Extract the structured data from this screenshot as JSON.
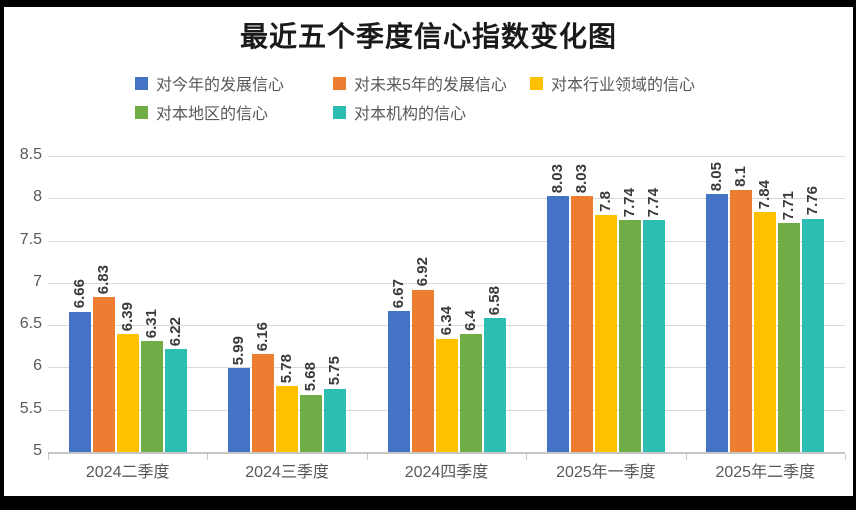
{
  "frame": {
    "border_color": "#000000",
    "background": "#ffffff"
  },
  "chart_data": {
    "type": "bar",
    "title": "最近五个季度信心指数变化图",
    "categories": [
      "2024二季度",
      "2024三季度",
      "2024四季度",
      "2025年一季度",
      "2025年二季度"
    ],
    "series": [
      {
        "name": "对今年的发展信心",
        "color": "#4472C4",
        "values": [
          6.66,
          5.99,
          6.67,
          8.03,
          8.05
        ]
      },
      {
        "name": "对未来5年的发展信心",
        "color": "#ED7D31",
        "values": [
          6.83,
          6.16,
          6.92,
          8.03,
          8.1
        ]
      },
      {
        "name": "对本行业领域的信心",
        "color": "#FFC000",
        "values": [
          6.39,
          5.78,
          6.34,
          7.8,
          7.84
        ]
      },
      {
        "name": "对本地区的信心",
        "color": "#70AD47",
        "values": [
          6.31,
          5.68,
          6.4,
          7.74,
          7.71
        ]
      },
      {
        "name": "对本机构的信心",
        "color": "#2EBDB2",
        "values": [
          6.22,
          5.75,
          6.58,
          7.74,
          7.76
        ]
      }
    ],
    "ylim": [
      5,
      8.5
    ],
    "ytick_step": 0.5,
    "yticks": [
      "8.5",
      "8",
      "7.5",
      "7",
      "6.5",
      "6",
      "5.5",
      "5"
    ],
    "grid": true,
    "legend_position": "top",
    "data_labels": "rotated-vertical",
    "xlabel": "",
    "ylabel": ""
  },
  "colors": {
    "gridline": "#d9d9d9",
    "axis_line": "#c6c6c6",
    "tick_text": "#595959",
    "value_label_text": "#3a3a3a",
    "title_text": "#1a1a1a"
  }
}
